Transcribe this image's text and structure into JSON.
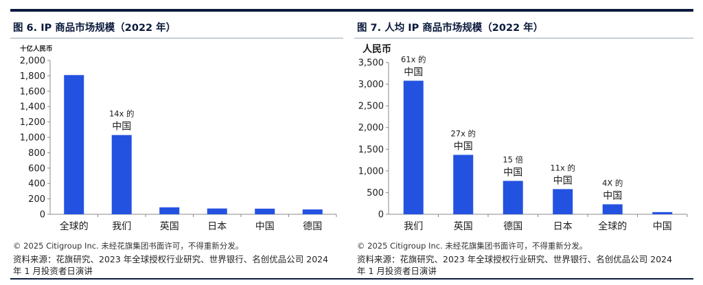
{
  "colors": {
    "bar": "#2452e0",
    "rule": "#0b1a3c",
    "axis": "#888888"
  },
  "chart_data": [
    {
      "type": "bar",
      "title": "图 6. IP 商品市场规模（2022 年）",
      "ylabel": "十亿人民币",
      "xlabel": "",
      "categories": [
        "全球的",
        "我们",
        "英国",
        "日本",
        "中国",
        "德国"
      ],
      "values": [
        1810,
        1030,
        90,
        75,
        73,
        63
      ],
      "ylim": [
        0,
        2000
      ],
      "yticks": [
        0,
        200,
        400,
        600,
        800,
        1000,
        1200,
        1400,
        1600,
        1800,
        2000
      ],
      "ytick_labels": [
        "0",
        "200",
        "400",
        "600",
        "800",
        "1,000",
        "1,200",
        "1,400",
        "1,600",
        "1,800",
        "2,000"
      ],
      "annotations": [
        {
          "category_index": 1,
          "lines": [
            "14x 的",
            "中国"
          ]
        }
      ],
      "grid": false,
      "legend": "none"
    },
    {
      "type": "bar",
      "title": "图 7. 人均 IP 商品市场规模（2022 年）",
      "ylabel": "人民币",
      "xlabel": "",
      "categories": [
        "我们",
        "英国",
        "德国",
        "日本",
        "全球的",
        "中国"
      ],
      "values": [
        3080,
        1370,
        770,
        580,
        230,
        50
      ],
      "ylim": [
        0,
        3500
      ],
      "yticks": [
        0,
        500,
        1000,
        1500,
        2000,
        2500,
        3000,
        3500
      ],
      "ytick_labels": [
        "0",
        "500",
        "1,000",
        "1,500",
        "2,000",
        "2,500",
        "3,000",
        "3,500"
      ],
      "annotations": [
        {
          "category_index": 0,
          "lines": [
            "61x 的",
            "中国"
          ]
        },
        {
          "category_index": 1,
          "lines": [
            "27x 的",
            "中国"
          ]
        },
        {
          "category_index": 2,
          "lines": [
            "15 倍",
            "中国"
          ]
        },
        {
          "category_index": 3,
          "lines": [
            "11x 的",
            "中国"
          ]
        },
        {
          "category_index": 4,
          "lines": [
            "4X 的",
            "中国"
          ]
        }
      ],
      "grid": false,
      "legend": "none"
    }
  ],
  "footer": {
    "copyright": "© 2025 Citigroup Inc. 未经花旗集团书面许可，不得重新分发。",
    "source_left": "资料来源：花旗研究、2023 年全球授权行业研究、世界银行、名创优品公司 2024 年 1 月投资者日演讲",
    "source_right": "资料来源：花旗研究、2023 年全球授权行业研究、世界银行、名创优品公司 2024 年 1 月投资者日演讲"
  }
}
